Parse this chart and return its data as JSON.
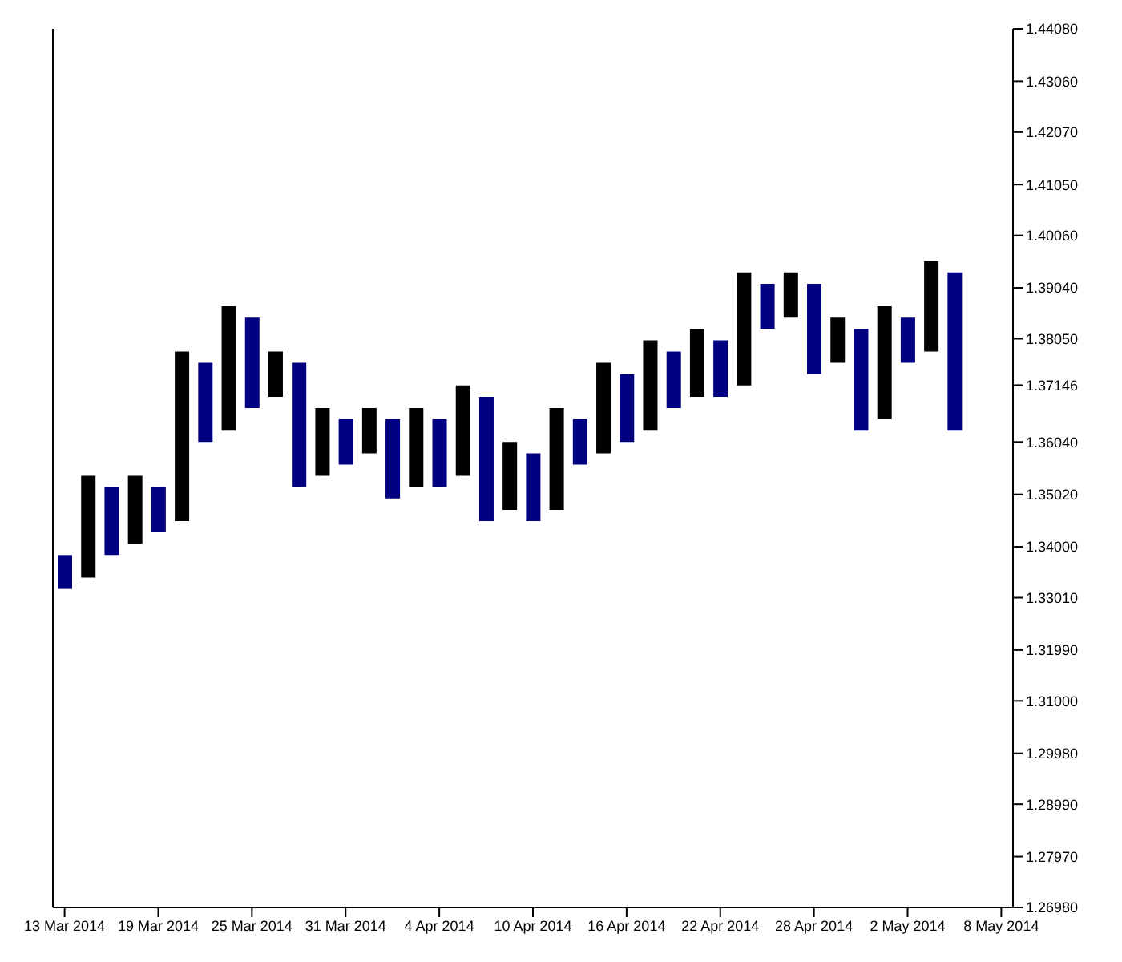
{
  "chart_data": {
    "type": "bar",
    "categories": [
      "13 Mar 2014",
      null,
      null,
      null,
      "19 Mar 2014",
      null,
      null,
      null,
      "25 Mar 2014",
      null,
      null,
      null,
      "31 Mar 2014",
      null,
      null,
      null,
      "4 Apr 2014",
      null,
      null,
      null,
      "10 Apr 2014",
      null,
      null,
      null,
      "16 Apr 2014",
      null,
      null,
      null,
      "22 Apr 2014",
      null,
      null,
      null,
      "28 Apr 2014",
      null,
      null,
      null,
      "2 May 2014",
      null,
      null,
      null,
      "8 May 2014"
    ],
    "series": [
      {
        "color": "#000000",
        "base": [
          null,
          1.334,
          null,
          1.3406,
          null,
          1.345,
          null,
          1.3626,
          null,
          1.3692,
          null,
          1.3538,
          null,
          1.3582,
          null,
          1.3516,
          null,
          1.3538,
          null,
          1.3472,
          null,
          1.3472,
          null,
          1.3582,
          null,
          1.3626,
          null,
          1.3692,
          null,
          1.3714,
          null,
          1.3846,
          null,
          1.3758,
          null,
          1.3648,
          null,
          1.378,
          null,
          null,
          null
        ],
        "values": [
          null,
          0.0198,
          null,
          0.0132,
          null,
          0.033,
          null,
          0.0242,
          null,
          0.0088,
          null,
          0.0132,
          null,
          0.0088,
          null,
          0.0154,
          null,
          0.0176,
          null,
          0.0132,
          null,
          0.0198,
          null,
          0.0176,
          null,
          0.0176,
          null,
          0.0132,
          null,
          0.022,
          null,
          0.0088,
          null,
          0.0088,
          null,
          0.022,
          null,
          0.0176,
          null,
          null,
          null
        ]
      },
      {
        "color": "#000080",
        "base": [
          1.3318,
          null,
          1.3384,
          null,
          1.3428,
          null,
          1.3604,
          null,
          1.367,
          null,
          1.3516,
          null,
          1.356,
          null,
          1.3494,
          null,
          1.3516,
          null,
          1.345,
          null,
          1.345,
          null,
          1.356,
          null,
          1.3604,
          null,
          1.367,
          null,
          1.3692,
          null,
          1.3824,
          null,
          1.3736,
          null,
          1.3626,
          null,
          1.3758,
          null,
          1.3626,
          null,
          null
        ],
        "values": [
          0.0066,
          null,
          0.0132,
          null,
          0.0088,
          null,
          0.0154,
          null,
          0.0176,
          null,
          0.0242,
          null,
          0.0088,
          null,
          0.0154,
          null,
          0.0132,
          null,
          0.0242,
          null,
          0.0132,
          null,
          0.0088,
          null,
          0.0132,
          null,
          0.011,
          null,
          0.011,
          null,
          0.0088,
          null,
          0.0176,
          null,
          0.0198,
          null,
          0.0088,
          null,
          0.0308,
          null,
          null
        ]
      }
    ],
    "ylim": [
      1.2698,
      1.4408
    ],
    "yticks": [
      {
        "value": 1.2698,
        "label": "1.26980"
      },
      {
        "value": 1.2797,
        "label": "1.27970"
      },
      {
        "value": 1.2899,
        "label": "1.28990"
      },
      {
        "value": 1.2998,
        "label": "1.29980"
      },
      {
        "value": 1.31,
        "label": "1.31000"
      },
      {
        "value": 1.3199,
        "label": "1.31990"
      },
      {
        "value": 1.3301,
        "label": "1.33010"
      },
      {
        "value": 1.34,
        "label": "1.34000"
      },
      {
        "value": 1.3502,
        "label": "1.35020"
      },
      {
        "value": 1.3604,
        "label": "1.36040"
      },
      {
        "value": 1.37146,
        "label": "1.37146"
      },
      {
        "value": 1.3805,
        "label": "1.38050"
      },
      {
        "value": 1.3904,
        "label": "1.39040"
      },
      {
        "value": 1.4006,
        "label": "1.40060"
      },
      {
        "value": 1.4105,
        "label": "1.41050"
      },
      {
        "value": 1.4207,
        "label": "1.42070"
      },
      {
        "value": 1.4306,
        "label": "1.43060"
      },
      {
        "value": 1.4408,
        "label": "1.44080"
      }
    ],
    "grid": false,
    "legend": false
  }
}
